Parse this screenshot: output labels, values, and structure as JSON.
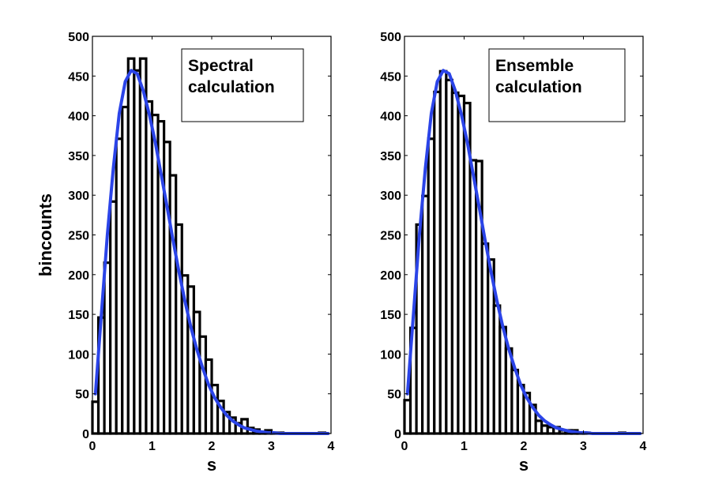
{
  "chart_data": [
    {
      "type": "bar",
      "ylabel": "bincounts",
      "xlabel": "s",
      "xlim": [
        0,
        4
      ],
      "ylim": [
        0,
        500
      ],
      "xticks": [
        0,
        1,
        2,
        3,
        4
      ],
      "yticks": [
        0,
        50,
        100,
        150,
        200,
        250,
        300,
        350,
        400,
        450,
        500
      ],
      "grid": false,
      "legend": {
        "position": "top-right",
        "lines": [
          "Spectral",
          "calculation"
        ]
      },
      "bin_width": 0.1,
      "x": [
        0.05,
        0.15,
        0.25,
        0.35,
        0.45,
        0.55,
        0.65,
        0.75,
        0.85,
        0.95,
        1.05,
        1.15,
        1.25,
        1.35,
        1.45,
        1.55,
        1.65,
        1.75,
        1.85,
        1.95,
        2.05,
        2.15,
        2.25,
        2.35,
        2.45,
        2.55,
        2.65,
        2.75,
        2.85,
        2.95,
        3.05,
        3.15,
        3.25,
        3.35,
        3.45,
        3.55,
        3.65,
        3.75,
        3.85,
        3.95
      ],
      "values": [
        40,
        146,
        215,
        292,
        371,
        411,
        472,
        457,
        472,
        418,
        401,
        393,
        367,
        325,
        263,
        199,
        185,
        153,
        122,
        93,
        61,
        41,
        27,
        20,
        13,
        18,
        7,
        5,
        2,
        4,
        1,
        1,
        0,
        0,
        0,
        0,
        0,
        0,
        1,
        0
      ],
      "series": [
        {
          "values": [
            50,
            150,
            250,
            334,
            403,
            443,
            457,
            453,
            432,
            403,
            368,
            327,
            286,
            244,
            204,
            167,
            134,
            106,
            82,
            61,
            45,
            33,
            23,
            16,
            11,
            7,
            5,
            3,
            2,
            1,
            1,
            0,
            0,
            0,
            0,
            0,
            0,
            0,
            0,
            0
          ]
        }
      ],
      "colors": {
        "bars": "#000000",
        "curve": "#2b44e8"
      }
    },
    {
      "type": "bar",
      "ylabel": "",
      "xlabel": "s",
      "xlim": [
        0,
        4
      ],
      "ylim": [
        0,
        500
      ],
      "xticks": [
        0,
        1,
        2,
        3,
        4
      ],
      "yticks": [
        0,
        50,
        100,
        150,
        200,
        250,
        300,
        350,
        400,
        450,
        500
      ],
      "grid": false,
      "legend": {
        "position": "top-right",
        "lines": [
          "Ensemble",
          "calculation"
        ]
      },
      "bin_width": 0.1,
      "x": [
        0.05,
        0.15,
        0.25,
        0.35,
        0.45,
        0.55,
        0.65,
        0.75,
        0.85,
        0.95,
        1.05,
        1.15,
        1.25,
        1.35,
        1.45,
        1.55,
        1.65,
        1.75,
        1.85,
        1.95,
        2.05,
        2.15,
        2.25,
        2.35,
        2.45,
        2.55,
        2.65,
        2.75,
        2.85,
        2.95,
        3.05,
        3.15,
        3.25,
        3.35,
        3.45,
        3.55,
        3.65,
        3.75,
        3.85,
        3.95
      ],
      "values": [
        42,
        133,
        263,
        299,
        371,
        430,
        456,
        445,
        429,
        425,
        416,
        344,
        343,
        239,
        219,
        161,
        134,
        107,
        80,
        61,
        51,
        36,
        16,
        10,
        8,
        8,
        4,
        4,
        4,
        1,
        1,
        0,
        0,
        0,
        0,
        0,
        1,
        0,
        0,
        0
      ],
      "series": [
        {
          "values": [
            50,
            150,
            250,
            334,
            403,
            443,
            457,
            453,
            432,
            403,
            368,
            327,
            286,
            244,
            204,
            167,
            134,
            106,
            82,
            61,
            45,
            33,
            23,
            16,
            11,
            7,
            5,
            3,
            2,
            1,
            1,
            0,
            0,
            0,
            0,
            0,
            0,
            0,
            0,
            0
          ]
        }
      ],
      "colors": {
        "bars": "#000000",
        "curve": "#2b44e8"
      }
    }
  ]
}
